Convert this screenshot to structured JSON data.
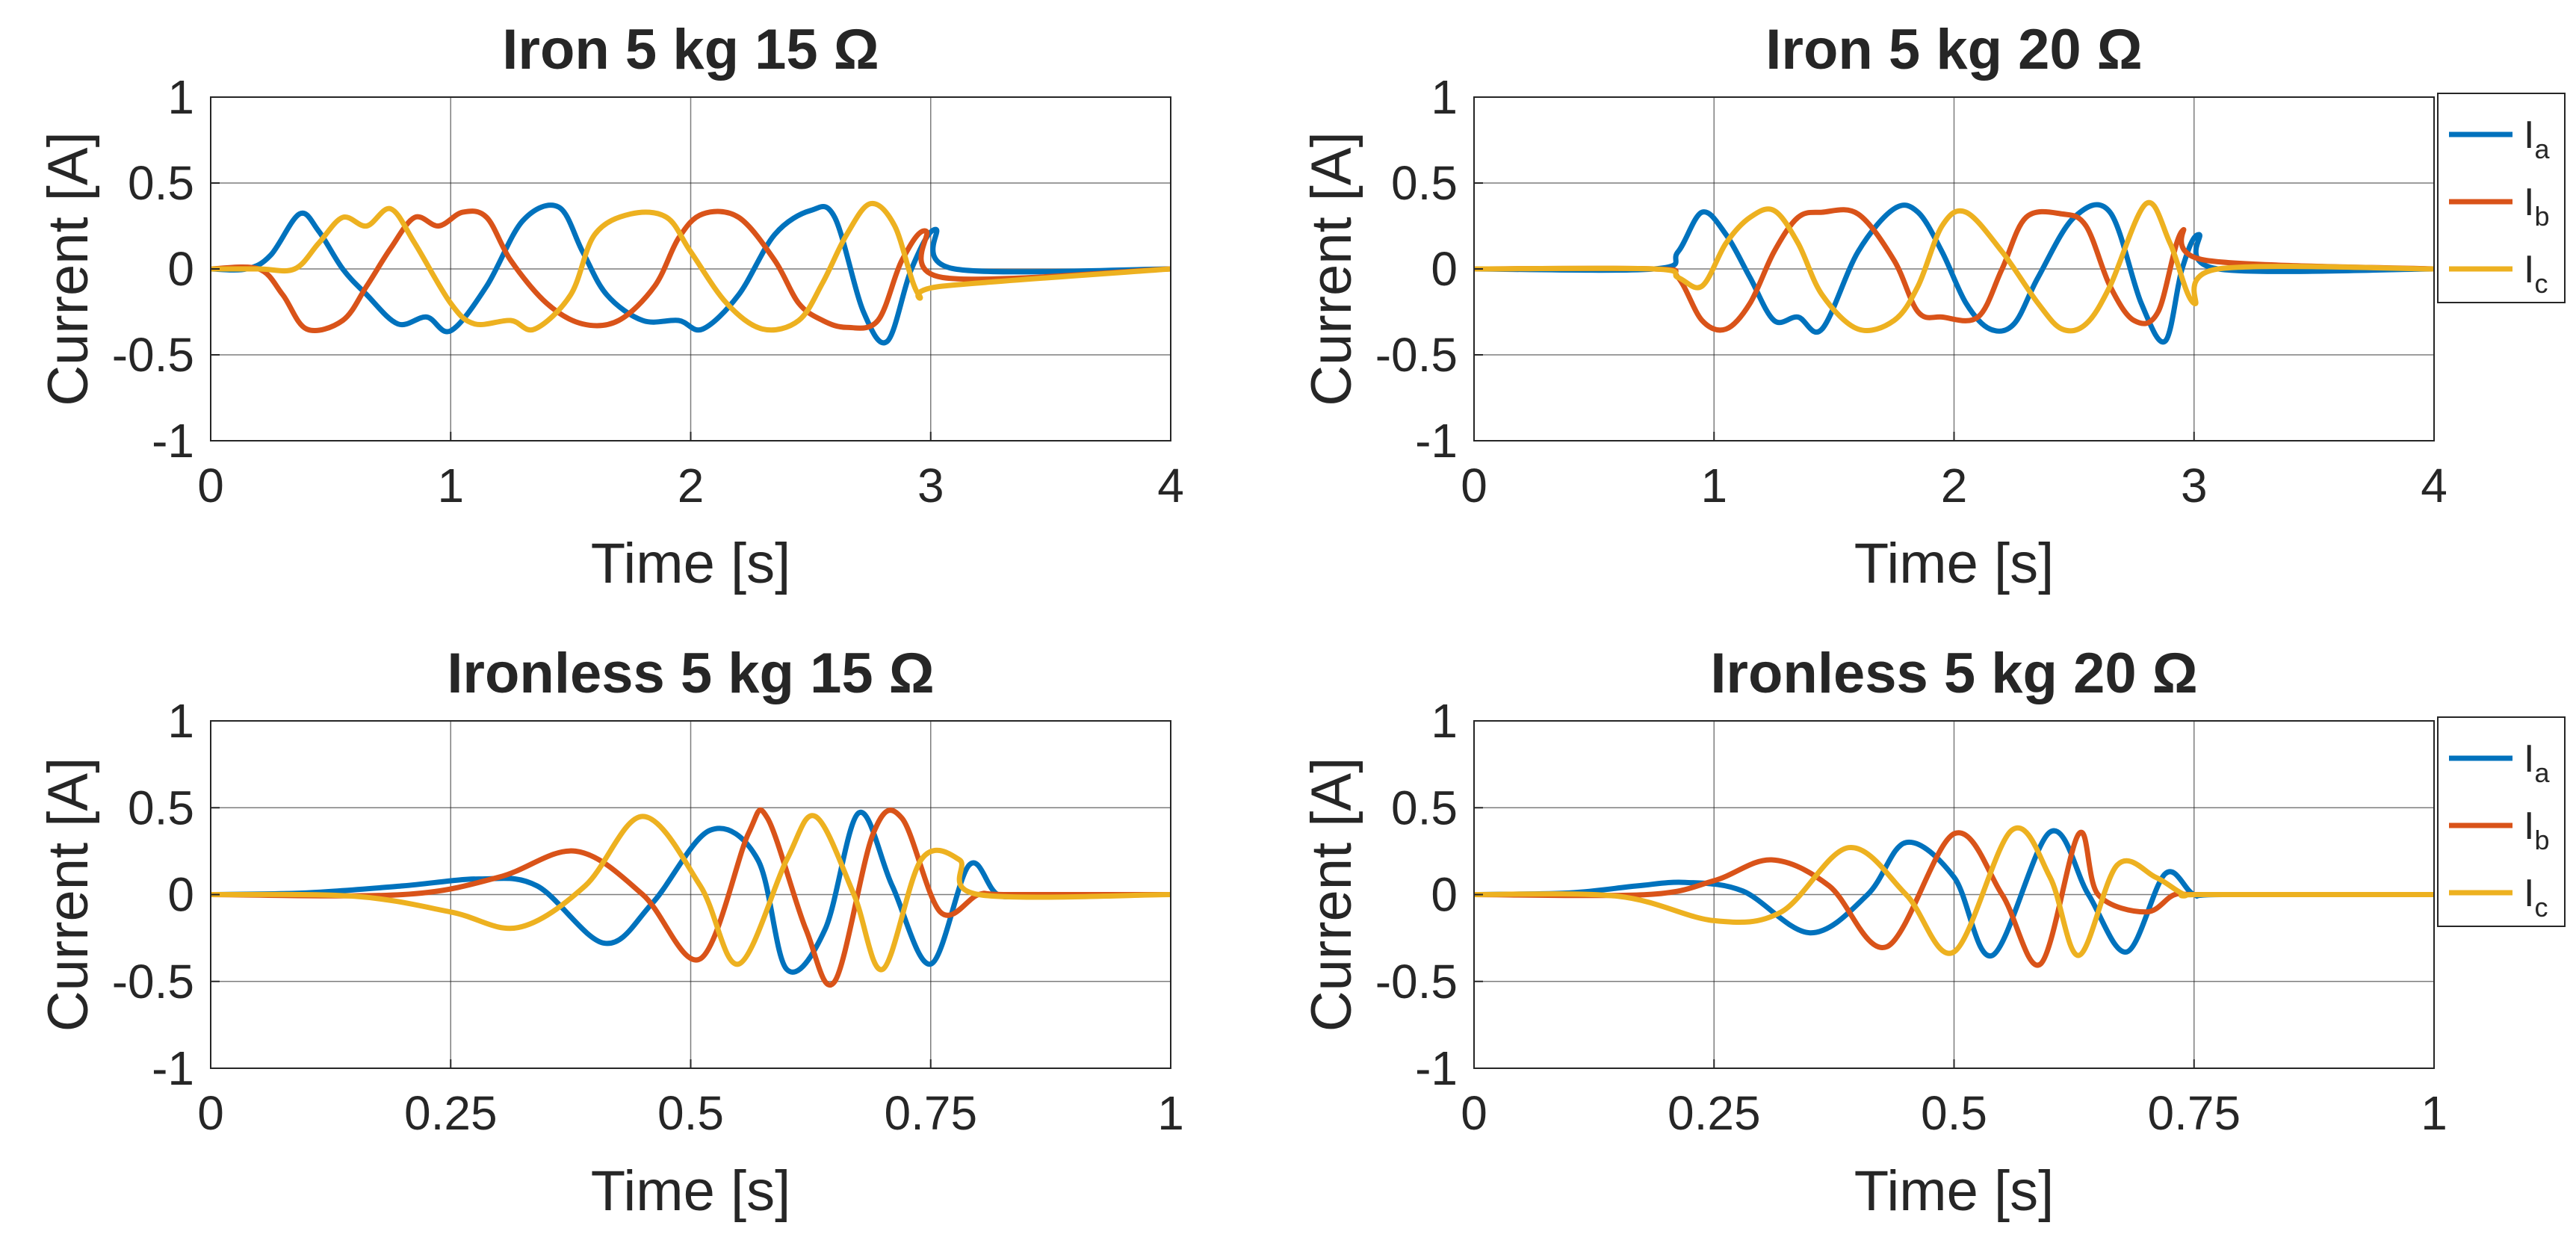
{
  "chart_data": [
    {
      "type": "line",
      "title": "Iron 5 kg 15 Ω",
      "xlabel": "Time [s]",
      "ylabel": "Current [A]",
      "xlim": [
        0,
        4
      ],
      "ylim": [
        -1,
        1
      ],
      "xticks": [
        0,
        1,
        2,
        3,
        4
      ],
      "xtick_labels": [
        "0",
        "1",
        "2",
        "3",
        "4"
      ],
      "yticks": [
        1,
        0.5,
        0,
        -0.5,
        -1
      ],
      "ytick_labels": [
        "1",
        "0.5",
        "0",
        "-0.5",
        "-1"
      ],
      "grid": true,
      "legend": null,
      "series": [
        {
          "name": "Ia",
          "color": "#0072BD",
          "x": [
            0,
            0.15,
            0.25,
            0.37,
            0.45,
            0.55,
            0.65,
            0.78,
            0.9,
            1.0,
            1.15,
            1.3,
            1.45,
            1.55,
            1.65,
            1.8,
            1.95,
            2.05,
            2.2,
            2.35,
            2.5,
            2.6,
            2.72,
            2.82,
            2.92,
            3.02,
            3.1,
            4.0
          ],
          "y": [
            0,
            0.0,
            0.08,
            0.32,
            0.22,
            0.0,
            -0.15,
            -0.32,
            -0.28,
            -0.36,
            -0.1,
            0.28,
            0.36,
            0.1,
            -0.15,
            -0.3,
            -0.3,
            -0.35,
            -0.15,
            0.2,
            0.34,
            0.3,
            -0.25,
            -0.42,
            0.0,
            0.23,
            0.0,
            0.0
          ]
        },
        {
          "name": "Ib",
          "color": "#D95319",
          "x": [
            0,
            0.2,
            0.3,
            0.4,
            0.55,
            0.65,
            0.75,
            0.85,
            0.95,
            1.05,
            1.15,
            1.25,
            1.4,
            1.55,
            1.7,
            1.85,
            1.95,
            2.05,
            2.2,
            2.35,
            2.45,
            2.55,
            2.65,
            2.78,
            2.88,
            2.98,
            3.05,
            4.0
          ],
          "y": [
            0,
            0.0,
            -0.15,
            -0.35,
            -0.3,
            -0.1,
            0.12,
            0.3,
            0.25,
            0.33,
            0.3,
            0.05,
            -0.2,
            -0.32,
            -0.3,
            -0.1,
            0.18,
            0.32,
            0.3,
            0.05,
            -0.2,
            -0.3,
            -0.34,
            -0.3,
            0.05,
            0.22,
            -0.05,
            0.0
          ]
        },
        {
          "name": "Ic",
          "color": "#EDB120",
          "x": [
            0,
            0.2,
            0.35,
            0.45,
            0.55,
            0.65,
            0.75,
            0.85,
            1.0,
            1.1,
            1.25,
            1.35,
            1.5,
            1.6,
            1.75,
            1.9,
            2.0,
            2.15,
            2.3,
            2.45,
            2.55,
            2.65,
            2.75,
            2.85,
            2.95,
            3.05,
            4.0
          ],
          "y": [
            0,
            0.0,
            0.0,
            0.15,
            0.3,
            0.25,
            0.35,
            0.15,
            -0.2,
            -0.32,
            -0.3,
            -0.35,
            -0.15,
            0.2,
            0.32,
            0.3,
            0.1,
            -0.2,
            -0.35,
            -0.3,
            -0.08,
            0.2,
            0.38,
            0.25,
            -0.15,
            -0.1,
            0.0
          ]
        }
      ]
    },
    {
      "type": "line",
      "title": "Iron 5 kg 20 Ω",
      "xlabel": "Time [s]",
      "ylabel": "Current [A]",
      "xlim": [
        0,
        4
      ],
      "ylim": [
        -1,
        1
      ],
      "xticks": [
        0,
        1,
        2,
        3,
        4
      ],
      "xtick_labels": [
        "0",
        "1",
        "2",
        "3",
        "4"
      ],
      "yticks": [
        1,
        0.5,
        0,
        -0.5,
        -1
      ],
      "ytick_labels": [
        "1",
        "0.5",
        "0",
        "-0.5",
        "-1"
      ],
      "grid": true,
      "legend": "outside-top-right",
      "series": [
        {
          "name": "Ia",
          "color": "#0072BD",
          "x": [
            0,
            0.75,
            0.85,
            0.95,
            1.05,
            1.15,
            1.25,
            1.35,
            1.45,
            1.6,
            1.75,
            1.85,
            1.95,
            2.05,
            2.15,
            2.25,
            2.35,
            2.5,
            2.65,
            2.78,
            2.88,
            2.95,
            3.02,
            3.1,
            4.0
          ],
          "y": [
            0,
            0.0,
            0.1,
            0.33,
            0.2,
            -0.05,
            -0.3,
            -0.28,
            -0.35,
            0.1,
            0.35,
            0.33,
            0.1,
            -0.2,
            -0.35,
            -0.32,
            -0.05,
            0.3,
            0.33,
            -0.2,
            -0.42,
            0.0,
            0.2,
            0.0,
            0.0
          ]
        },
        {
          "name": "Ib",
          "color": "#D95319",
          "x": [
            0,
            0.75,
            0.85,
            0.95,
            1.05,
            1.15,
            1.25,
            1.35,
            1.45,
            1.6,
            1.75,
            1.85,
            1.95,
            2.1,
            2.2,
            2.3,
            2.45,
            2.55,
            2.65,
            2.75,
            2.85,
            2.95,
            3.05,
            4.0
          ],
          "y": [
            0,
            0.0,
            -0.05,
            -0.3,
            -0.35,
            -0.2,
            0.1,
            0.3,
            0.33,
            0.32,
            0.05,
            -0.25,
            -0.28,
            -0.28,
            0.0,
            0.3,
            0.32,
            0.25,
            -0.1,
            -0.3,
            -0.25,
            0.22,
            0.05,
            0.0
          ]
        },
        {
          "name": "Ic",
          "color": "#EDB120",
          "x": [
            0,
            0.75,
            0.85,
            0.95,
            1.05,
            1.15,
            1.25,
            1.35,
            1.45,
            1.6,
            1.75,
            1.85,
            1.95,
            2.05,
            2.2,
            2.35,
            2.45,
            2.55,
            2.65,
            2.8,
            2.9,
            3.0,
            3.1,
            4.0
          ],
          "y": [
            0,
            0.0,
            -0.05,
            -0.1,
            0.15,
            0.3,
            0.34,
            0.15,
            -0.15,
            -0.35,
            -0.3,
            -0.1,
            0.25,
            0.33,
            0.1,
            -0.2,
            -0.35,
            -0.32,
            -0.1,
            0.38,
            0.15,
            -0.2,
            0.0,
            0.0
          ]
        }
      ]
    },
    {
      "type": "line",
      "title": "Ironless 5 kg 15 Ω",
      "xlabel": "Time [s]",
      "ylabel": "Current [A]",
      "xlim": [
        0,
        1
      ],
      "ylim": [
        -1,
        1
      ],
      "xticks": [
        0,
        0.25,
        0.5,
        0.75,
        1
      ],
      "xtick_labels": [
        "0",
        "0.25",
        "0.5",
        "0.75",
        "1"
      ],
      "yticks": [
        1,
        0.5,
        0,
        -0.5,
        -1
      ],
      "ytick_labels": [
        "1",
        "0.5",
        "0",
        "-0.5",
        "-1"
      ],
      "grid": true,
      "legend": null,
      "series": [
        {
          "name": "Ia",
          "color": "#0072BD",
          "x": [
            0,
            0.1,
            0.2,
            0.28,
            0.34,
            0.41,
            0.46,
            0.52,
            0.57,
            0.6,
            0.64,
            0.675,
            0.71,
            0.75,
            0.79,
            0.82,
            0.86,
            1.0
          ],
          "y": [
            0,
            0.01,
            0.05,
            0.09,
            0.05,
            -0.28,
            -0.05,
            0.37,
            0.2,
            -0.43,
            -0.2,
            0.47,
            0.05,
            -0.4,
            0.17,
            0.0,
            0.0,
            0.0
          ]
        },
        {
          "name": "Ib",
          "color": "#D95319",
          "x": [
            0,
            0.2,
            0.3,
            0.38,
            0.45,
            0.51,
            0.56,
            0.58,
            0.62,
            0.65,
            0.69,
            0.72,
            0.76,
            0.8,
            0.83,
            1.0
          ],
          "y": [
            0,
            0.0,
            0.1,
            0.25,
            0.0,
            -0.37,
            0.35,
            0.44,
            -0.2,
            -0.5,
            0.35,
            0.44,
            -0.1,
            0.0,
            0.0,
            0.0
          ]
        },
        {
          "name": "Ic",
          "color": "#EDB120",
          "x": [
            0,
            0.15,
            0.25,
            0.32,
            0.39,
            0.45,
            0.51,
            0.55,
            0.6,
            0.63,
            0.67,
            0.7,
            0.74,
            0.78,
            0.8,
            1.0
          ],
          "y": [
            0,
            -0.01,
            -0.1,
            -0.19,
            0.05,
            0.45,
            0.05,
            -0.4,
            0.2,
            0.45,
            0.0,
            -0.43,
            0.2,
            0.2,
            0.0,
            0.0
          ]
        }
      ]
    },
    {
      "type": "line",
      "title": "Ironless 5 kg 20 Ω",
      "xlabel": "Time [s]",
      "ylabel": "Current [A]",
      "xlim": [
        0,
        1
      ],
      "ylim": [
        -1,
        1
      ],
      "xticks": [
        0,
        0.25,
        0.5,
        0.75,
        1
      ],
      "xtick_labels": [
        "0",
        "0.25",
        "0.5",
        "0.75",
        "1"
      ],
      "yticks": [
        1,
        0.5,
        0,
        -0.5,
        -1
      ],
      "ytick_labels": [
        "1",
        "0.5",
        "0",
        "-0.5",
        "-1"
      ],
      "grid": true,
      "legend": "outside-top-right",
      "series": [
        {
          "name": "Ia",
          "color": "#0072BD",
          "x": [
            0,
            0.1,
            0.17,
            0.22,
            0.28,
            0.35,
            0.41,
            0.45,
            0.5,
            0.54,
            0.6,
            0.64,
            0.68,
            0.72,
            0.75,
            0.78,
            1.0
          ],
          "y": [
            0,
            0.01,
            0.05,
            0.07,
            0.02,
            -0.22,
            0.0,
            0.3,
            0.1,
            -0.35,
            0.36,
            0.0,
            -0.33,
            0.12,
            0.0,
            0.0,
            0.0
          ]
        },
        {
          "name": "Ib",
          "color": "#D95319",
          "x": [
            0,
            0.18,
            0.25,
            0.31,
            0.37,
            0.43,
            0.5,
            0.55,
            0.59,
            0.63,
            0.65,
            0.7,
            0.73,
            0.76,
            1.0
          ],
          "y": [
            0,
            0.0,
            0.08,
            0.2,
            0.05,
            -0.3,
            0.35,
            0.0,
            -0.4,
            0.35,
            0.0,
            -0.1,
            0.0,
            0.0,
            0.0
          ]
        },
        {
          "name": "Ic",
          "color": "#EDB120",
          "x": [
            0,
            0.15,
            0.25,
            0.32,
            0.39,
            0.45,
            0.5,
            0.56,
            0.6,
            0.63,
            0.67,
            0.71,
            0.74,
            0.76,
            1.0
          ],
          "y": [
            0,
            -0.01,
            -0.15,
            -0.1,
            0.27,
            0.0,
            -0.33,
            0.37,
            0.1,
            -0.35,
            0.17,
            0.1,
            0.0,
            0.0,
            0.0
          ]
        }
      ]
    }
  ]
}
